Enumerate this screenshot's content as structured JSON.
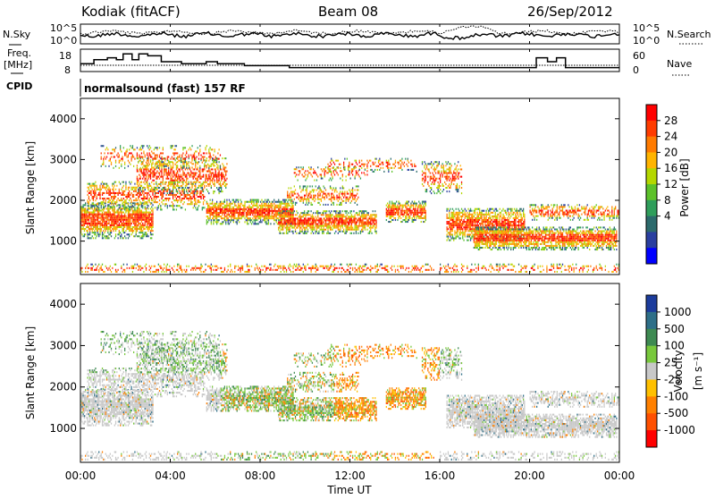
{
  "header": {
    "title": "Kodiak (fitACF)",
    "beam": "Beam 08",
    "date": "26/Sep/2012"
  },
  "scan_panel": {
    "left_label": "N.Sky",
    "right_label": "N.Search",
    "left_ticks": [
      "10^5",
      "10^0"
    ],
    "right_ticks": [
      "10^5",
      "10^0"
    ]
  },
  "freq_panel": {
    "left_label_line1": "Freq.",
    "left_label_line2": "[MHz]",
    "right_label": "Nave",
    "left_ticks": [
      "18",
      "8"
    ],
    "right_ticks": [
      "60",
      "0"
    ]
  },
  "cpid_panel": {
    "label": "CPID",
    "text": "normalsound (fast) 157 RF"
  },
  "chart_data": [
    {
      "type": "heatmap",
      "ylabel": "Slant Range [km]",
      "yticks": [
        "4000",
        "3000",
        "2000",
        "1000"
      ],
      "ylim": [
        180,
        4500
      ],
      "colorbar": {
        "label": "Power [dB]",
        "ticks": [
          "28",
          "24",
          "20",
          "16",
          "12",
          "8",
          "4"
        ],
        "colors": [
          "#ff0000",
          "#ff3c00",
          "#ff7b00",
          "#ffb400",
          "#b4d700",
          "#5cc12a",
          "#2f9e5b",
          "#2c6a6c",
          "#2a3fa0",
          "#0000ff"
        ]
      }
    },
    {
      "type": "heatmap",
      "ylabel": "Slant Range [km]",
      "ylabel_unit": "[m s⁻¹]",
      "yticks": [
        "4000",
        "3000",
        "2000",
        "1000"
      ],
      "ylim": [
        180,
        4500
      ],
      "colorbar": {
        "label": "Velocity",
        "unit": "[m s⁻¹]",
        "ticks": [
          "1000",
          "500",
          "100",
          "25",
          "-25",
          "-100",
          "-500",
          "-1000"
        ],
        "colors": [
          "#1c3c9c",
          "#2e6f88",
          "#3e8a52",
          "#78c83c",
          "#c8c8c8",
          "#ffc000",
          "#ff8000",
          "#ff5000",
          "#ff0000"
        ]
      }
    }
  ],
  "xaxis": {
    "label": "Time UT",
    "ticks": [
      "00:00",
      "04:00",
      "08:00",
      "12:00",
      "16:00",
      "20:00",
      "00:00"
    ]
  }
}
